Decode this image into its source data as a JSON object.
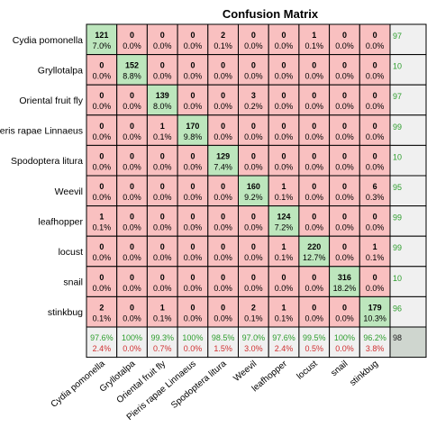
{
  "chart_data": {
    "type": "heatmap",
    "title": "Confusion Matrix",
    "row_labels": [
      "Cydia pomonella",
      "Gryllotalpa",
      "Oriental fruit fly",
      "Pieris rapae Linnaeus",
      "Spodoptera litura",
      "Weevil",
      "leafhopper",
      "locust",
      "snail",
      "stinkbug"
    ],
    "row_labels_display": [
      "Cydia pomonella",
      "Gryllotalpa",
      "Oriental fruit fly",
      "ieris rapae Linnaeus",
      "Spodoptera litura",
      "Weevil",
      "leafhopper",
      "locust",
      "snail",
      "stinkbug"
    ],
    "col_labels": [
      "Cydia pomonella",
      "Gryllotalpa",
      "Oriental fruit fly",
      "Pieris rapae Linnaeus",
      "Spodoptera litura",
      "Weevil",
      "leafhopper",
      "locust",
      "snail",
      "stinkbug"
    ],
    "counts": [
      [
        121,
        0,
        0,
        0,
        2,
        0,
        0,
        1,
        0,
        0
      ],
      [
        0,
        152,
        0,
        0,
        0,
        0,
        0,
        0,
        0,
        0
      ],
      [
        0,
        0,
        139,
        0,
        0,
        3,
        0,
        0,
        0,
        0
      ],
      [
        0,
        0,
        1,
        170,
        0,
        0,
        0,
        0,
        0,
        0
      ],
      [
        0,
        0,
        0,
        0,
        129,
        0,
        0,
        0,
        0,
        0
      ],
      [
        0,
        0,
        0,
        0,
        0,
        160,
        1,
        0,
        0,
        6
      ],
      [
        1,
        0,
        0,
        0,
        0,
        0,
        124,
        0,
        0,
        0
      ],
      [
        0,
        0,
        0,
        0,
        0,
        0,
        1,
        220,
        0,
        1
      ],
      [
        0,
        0,
        0,
        0,
        0,
        0,
        0,
        0,
        316,
        0
      ],
      [
        2,
        0,
        1,
        0,
        0,
        2,
        1,
        0,
        0,
        179
      ]
    ],
    "percents": [
      [
        "7.0%",
        "0.0%",
        "0.0%",
        "0.0%",
        "0.1%",
        "0.0%",
        "0.0%",
        "0.1%",
        "0.0%",
        "0.0%"
      ],
      [
        "0.0%",
        "8.8%",
        "0.0%",
        "0.0%",
        "0.0%",
        "0.0%",
        "0.0%",
        "0.0%",
        "0.0%",
        "0.0%"
      ],
      [
        "0.0%",
        "0.0%",
        "8.0%",
        "0.0%",
        "0.0%",
        "0.2%",
        "0.0%",
        "0.0%",
        "0.0%",
        "0.0%"
      ],
      [
        "0.0%",
        "0.0%",
        "0.1%",
        "9.8%",
        "0.0%",
        "0.0%",
        "0.0%",
        "0.0%",
        "0.0%",
        "0.0%"
      ],
      [
        "0.0%",
        "0.0%",
        "0.0%",
        "0.0%",
        "7.4%",
        "0.0%",
        "0.0%",
        "0.0%",
        "0.0%",
        "0.0%"
      ],
      [
        "0.0%",
        "0.0%",
        "0.0%",
        "0.0%",
        "0.0%",
        "9.2%",
        "0.1%",
        "0.0%",
        "0.0%",
        "0.3%"
      ],
      [
        "0.1%",
        "0.0%",
        "0.0%",
        "0.0%",
        "0.0%",
        "0.0%",
        "7.2%",
        "0.0%",
        "0.0%",
        "0.0%"
      ],
      [
        "0.0%",
        "0.0%",
        "0.0%",
        "0.0%",
        "0.0%",
        "0.0%",
        "0.1%",
        "12.7%",
        "0.0%",
        "0.1%"
      ],
      [
        "0.0%",
        "0.0%",
        "0.0%",
        "0.0%",
        "0.0%",
        "0.0%",
        "0.0%",
        "0.0%",
        "18.2%",
        "0.0%"
      ],
      [
        "0.1%",
        "0.0%",
        "0.1%",
        "0.0%",
        "0.0%",
        "0.1%",
        "0.1%",
        "0.0%",
        "0.0%",
        "10.3%"
      ]
    ],
    "row_summary_visible": [
      "97",
      "10",
      "97",
      "99",
      "10",
      "95",
      "99",
      "99",
      "10",
      "96"
    ],
    "col_summary": {
      "correct": [
        "97.6%",
        "100%",
        "99.3%",
        "100%",
        "98.5%",
        "97.0%",
        "97.6%",
        "99.5%",
        "100%",
        "96.2%"
      ],
      "error": [
        "2.4%",
        "0.0%",
        "0.7%",
        "0.0%",
        "1.5%",
        "3.0%",
        "2.4%",
        "0.5%",
        "0.0%",
        "3.8%"
      ]
    },
    "overall_visible": "98"
  },
  "colors": {
    "diagonal": "#bde6bd",
    "off_diagonal": "#f9c0c0",
    "summary": "#f0f0f0",
    "correct_text": "#2e9e2e",
    "error_text": "#d03030",
    "grid": "#000000"
  }
}
